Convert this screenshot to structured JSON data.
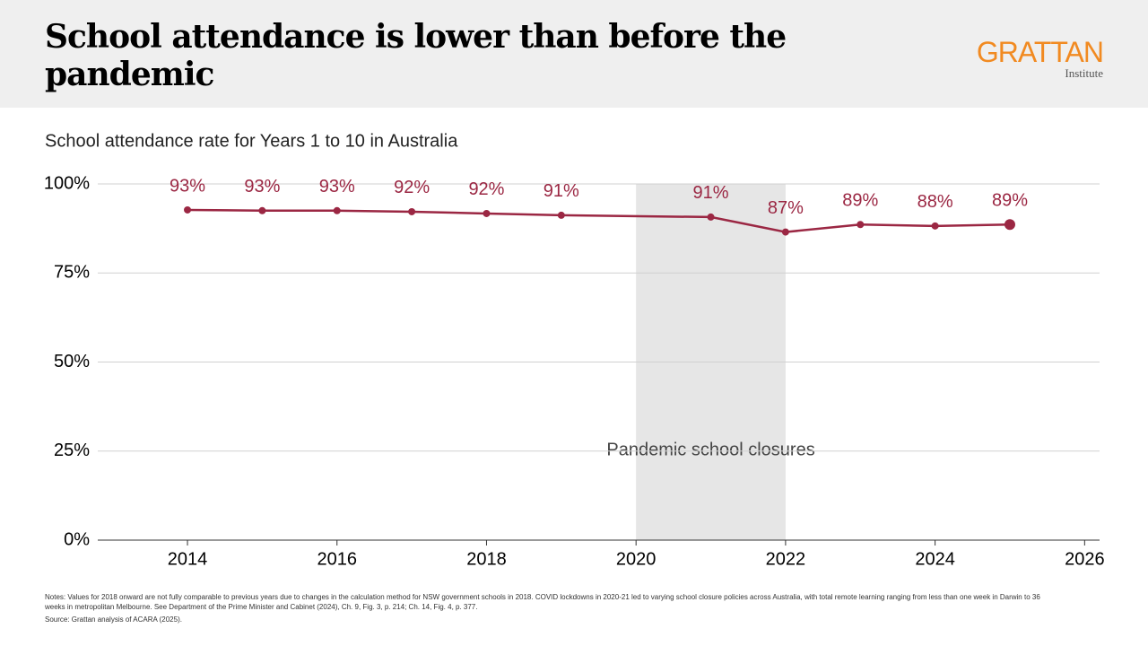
{
  "header": {
    "title": "School attendance is lower than before the pandemic",
    "logo": "GRATTAN",
    "logo_sub": "Institute"
  },
  "chart_data": {
    "type": "line",
    "subtitle": "School attendance rate for Years 1 to 10 in Australia",
    "x": [
      2014,
      2015,
      2016,
      2017,
      2018,
      2019,
      2021,
      2022,
      2023,
      2024,
      2025
    ],
    "series": [
      {
        "name": "School attendance rate",
        "color": "#9b2743",
        "values": [
          92.7,
          92.5,
          92.5,
          92.2,
          91.7,
          91.2,
          90.7,
          86.5,
          88.6,
          88.2,
          88.6
        ],
        "value_labels": [
          "93%",
          "93%",
          "93%",
          "92%",
          "92%",
          "91%",
          "91%",
          "87%",
          "89%",
          "88%",
          "89%"
        ]
      }
    ],
    "xlim": [
      2012.8,
      2026.2
    ],
    "xticks": [
      2014,
      2016,
      2018,
      2020,
      2022,
      2024,
      2026
    ],
    "ylim": [
      0,
      100
    ],
    "yticks": [
      {
        "value": 0,
        "label": "0%"
      },
      {
        "value": 25,
        "label": "25%"
      },
      {
        "value": 50,
        "label": "50%"
      },
      {
        "value": 75,
        "label": "75%"
      },
      {
        "value": 100,
        "label": "100%"
      }
    ],
    "grid": true,
    "shade": {
      "x": [
        2020,
        2022
      ],
      "label": "Pandemic school closures"
    }
  },
  "notes": "Notes: Values for 2018 onward are not fully comparable to previous years due to changes in the calculation method for NSW government schools in 2018. COVID lockdowns in 2020-21 led to varying school closure policies across Australia, with total remote learning ranging from less than one week in Darwin to 36 weeks in metropolitan Melbourne. See Department of the Prime Minister and Cabinet (2024), Ch. 9, Fig. 3, p. 214; Ch. 14, Fig. 4, p. 377.",
  "source": "Source: Grattan analysis of ACARA (2025)."
}
